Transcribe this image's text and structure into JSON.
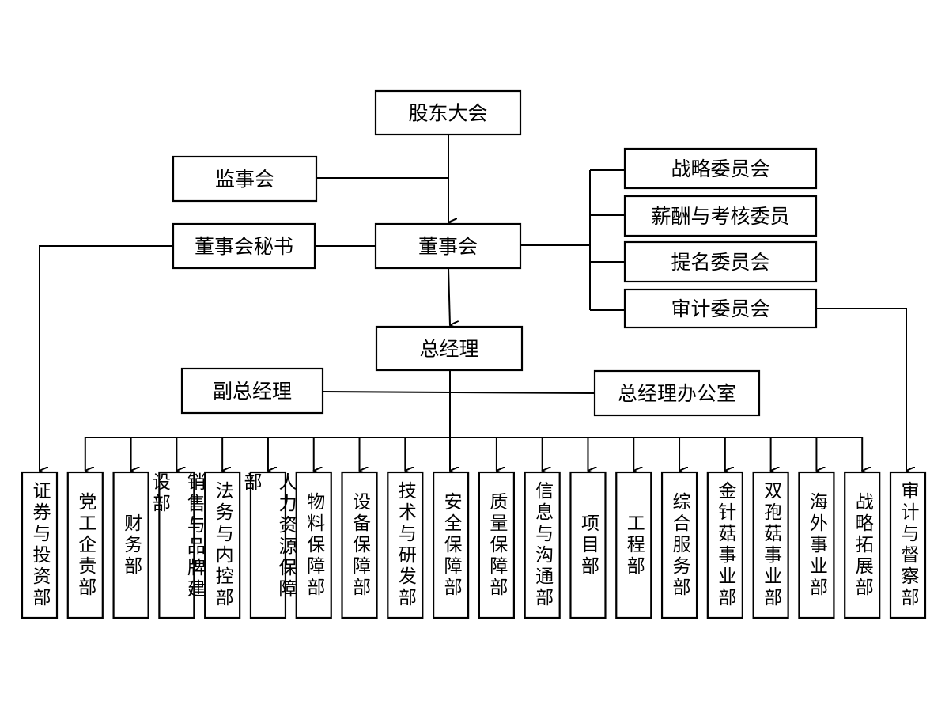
{
  "top": {
    "shareholders": "股东大会",
    "supervisors": "监事会",
    "board_secretary": "董事会秘书",
    "board": "董事会",
    "general_manager": "总经理",
    "deputy_gm": "副总经理",
    "gm_office": "总经理办公室"
  },
  "committees": [
    "战略委员会",
    "薪酬与考核委员",
    "提名委员会",
    "审计委员会"
  ],
  "departments": [
    "证券与投资部",
    "党工企责部",
    "财务部",
    "销售与品牌建设部",
    "法务与内控部",
    "人力资源保障部",
    "物料保障部",
    "设备保障部",
    "技术与研发部",
    "安全保障部",
    "质量保障部",
    "信息与沟通部",
    "项目部",
    "工程部",
    "综合服务部",
    "金针菇事业部",
    "双孢菇事业部",
    "海外事业部",
    "战略拓展部",
    "审计与督察部"
  ],
  "colors": {
    "line": "#000000",
    "background": "#ffffff"
  }
}
